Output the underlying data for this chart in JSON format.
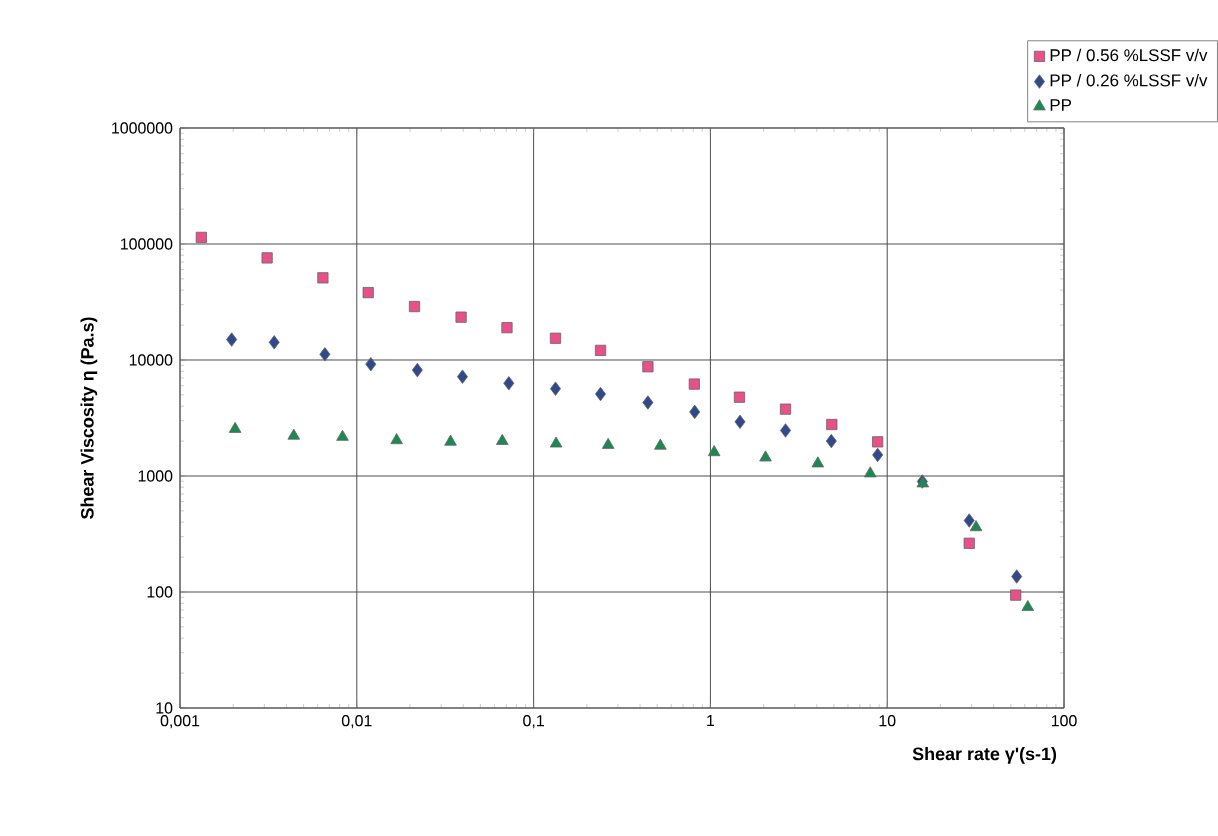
{
  "chart_data": {
    "type": "scatter",
    "xlabel": "Shear rate γ'(s-1)",
    "ylabel": "Shear Viscosity η (Pa.s)",
    "log": "xy",
    "grid": true,
    "legend": "top right",
    "xlim": [
      0.001,
      100
    ],
    "ylim": [
      10,
      1000000
    ],
    "xticks": [
      {
        "value": 0.001,
        "label": "0,001"
      },
      {
        "value": 0.01,
        "label": "0,01"
      },
      {
        "value": 0.1,
        "label": "0,1"
      },
      1,
      10,
      100
    ],
    "yticks": [
      10,
      100,
      1000,
      10000,
      100000,
      1000000
    ],
    "series": [
      {
        "name": "PP /  0.56 %LSSF v/v",
        "color": "#e8508a",
        "marker": "square",
        "x": [
          0.00132,
          0.00311,
          0.00643,
          0.0116,
          0.0212,
          0.0389,
          0.0707,
          0.133,
          0.239,
          0.443,
          0.811,
          1.46,
          2.66,
          4.86,
          8.83,
          16.0,
          29.1,
          53.3
        ],
        "values": [
          114000,
          75900,
          51100,
          38100,
          28900,
          23400,
          19000,
          15400,
          12100,
          8750,
          6200,
          4780,
          3770,
          2780,
          1970,
          null,
          263,
          94
        ]
      },
      {
        "name": "PP /  0.26 %LSSF v/v",
        "color": "#2e4a8c",
        "marker": "diamond",
        "x": [
          0.00196,
          0.00341,
          0.0066,
          0.012,
          0.022,
          0.0396,
          0.0724,
          0.133,
          0.239,
          0.443,
          0.815,
          1.47,
          2.66,
          4.83,
          8.83,
          15.8,
          29.1,
          54.0
        ],
        "values": [
          15000,
          14200,
          11200,
          9200,
          8180,
          7180,
          6300,
          5660,
          5090,
          4300,
          3570,
          2930,
          2470,
          2000,
          1520,
          896,
          413,
          136
        ]
      },
      {
        "name": "PP",
        "color": "#1a8a50",
        "marker": "triangle",
        "x": [
          0.00205,
          0.0044,
          0.0083,
          0.0168,
          0.0339,
          0.0665,
          0.134,
          0.264,
          0.521,
          1.05,
          2.05,
          4.05,
          8.02,
          15.9,
          31.8,
          62.4
        ],
        "values": [
          2540,
          2220,
          2170,
          2030,
          1970,
          2000,
          1900,
          1850,
          1820,
          1600,
          1440,
          1280,
          1050,
          861,
          361,
          74
        ]
      }
    ]
  }
}
